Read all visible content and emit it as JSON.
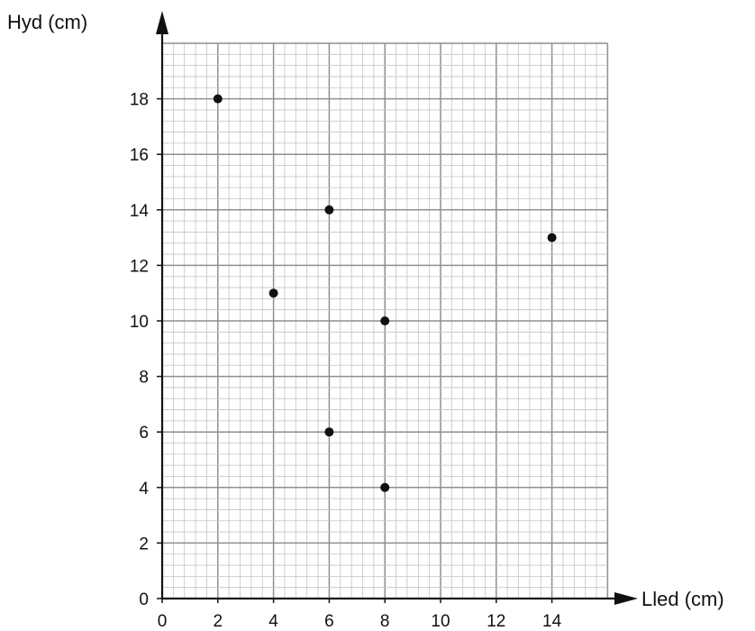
{
  "chart_data": {
    "type": "scatter",
    "xlabel": "Lled (cm)",
    "ylabel": "Hyd (cm)",
    "xlim": [
      0,
      16
    ],
    "ylim": [
      0,
      20
    ],
    "x_ticks": [
      "0",
      "2",
      "4",
      "6",
      "8",
      "10",
      "12",
      "14"
    ],
    "y_ticks": [
      "0",
      "2",
      "4",
      "6",
      "8",
      "10",
      "12",
      "14",
      "16",
      "18"
    ],
    "grid": true,
    "points": [
      {
        "x": 2,
        "y": 18
      },
      {
        "x": 6,
        "y": 14
      },
      {
        "x": 14,
        "y": 13
      },
      {
        "x": 4,
        "y": 11
      },
      {
        "x": 8,
        "y": 10
      },
      {
        "x": 6,
        "y": 6
      },
      {
        "x": 8,
        "y": 4
      }
    ]
  }
}
